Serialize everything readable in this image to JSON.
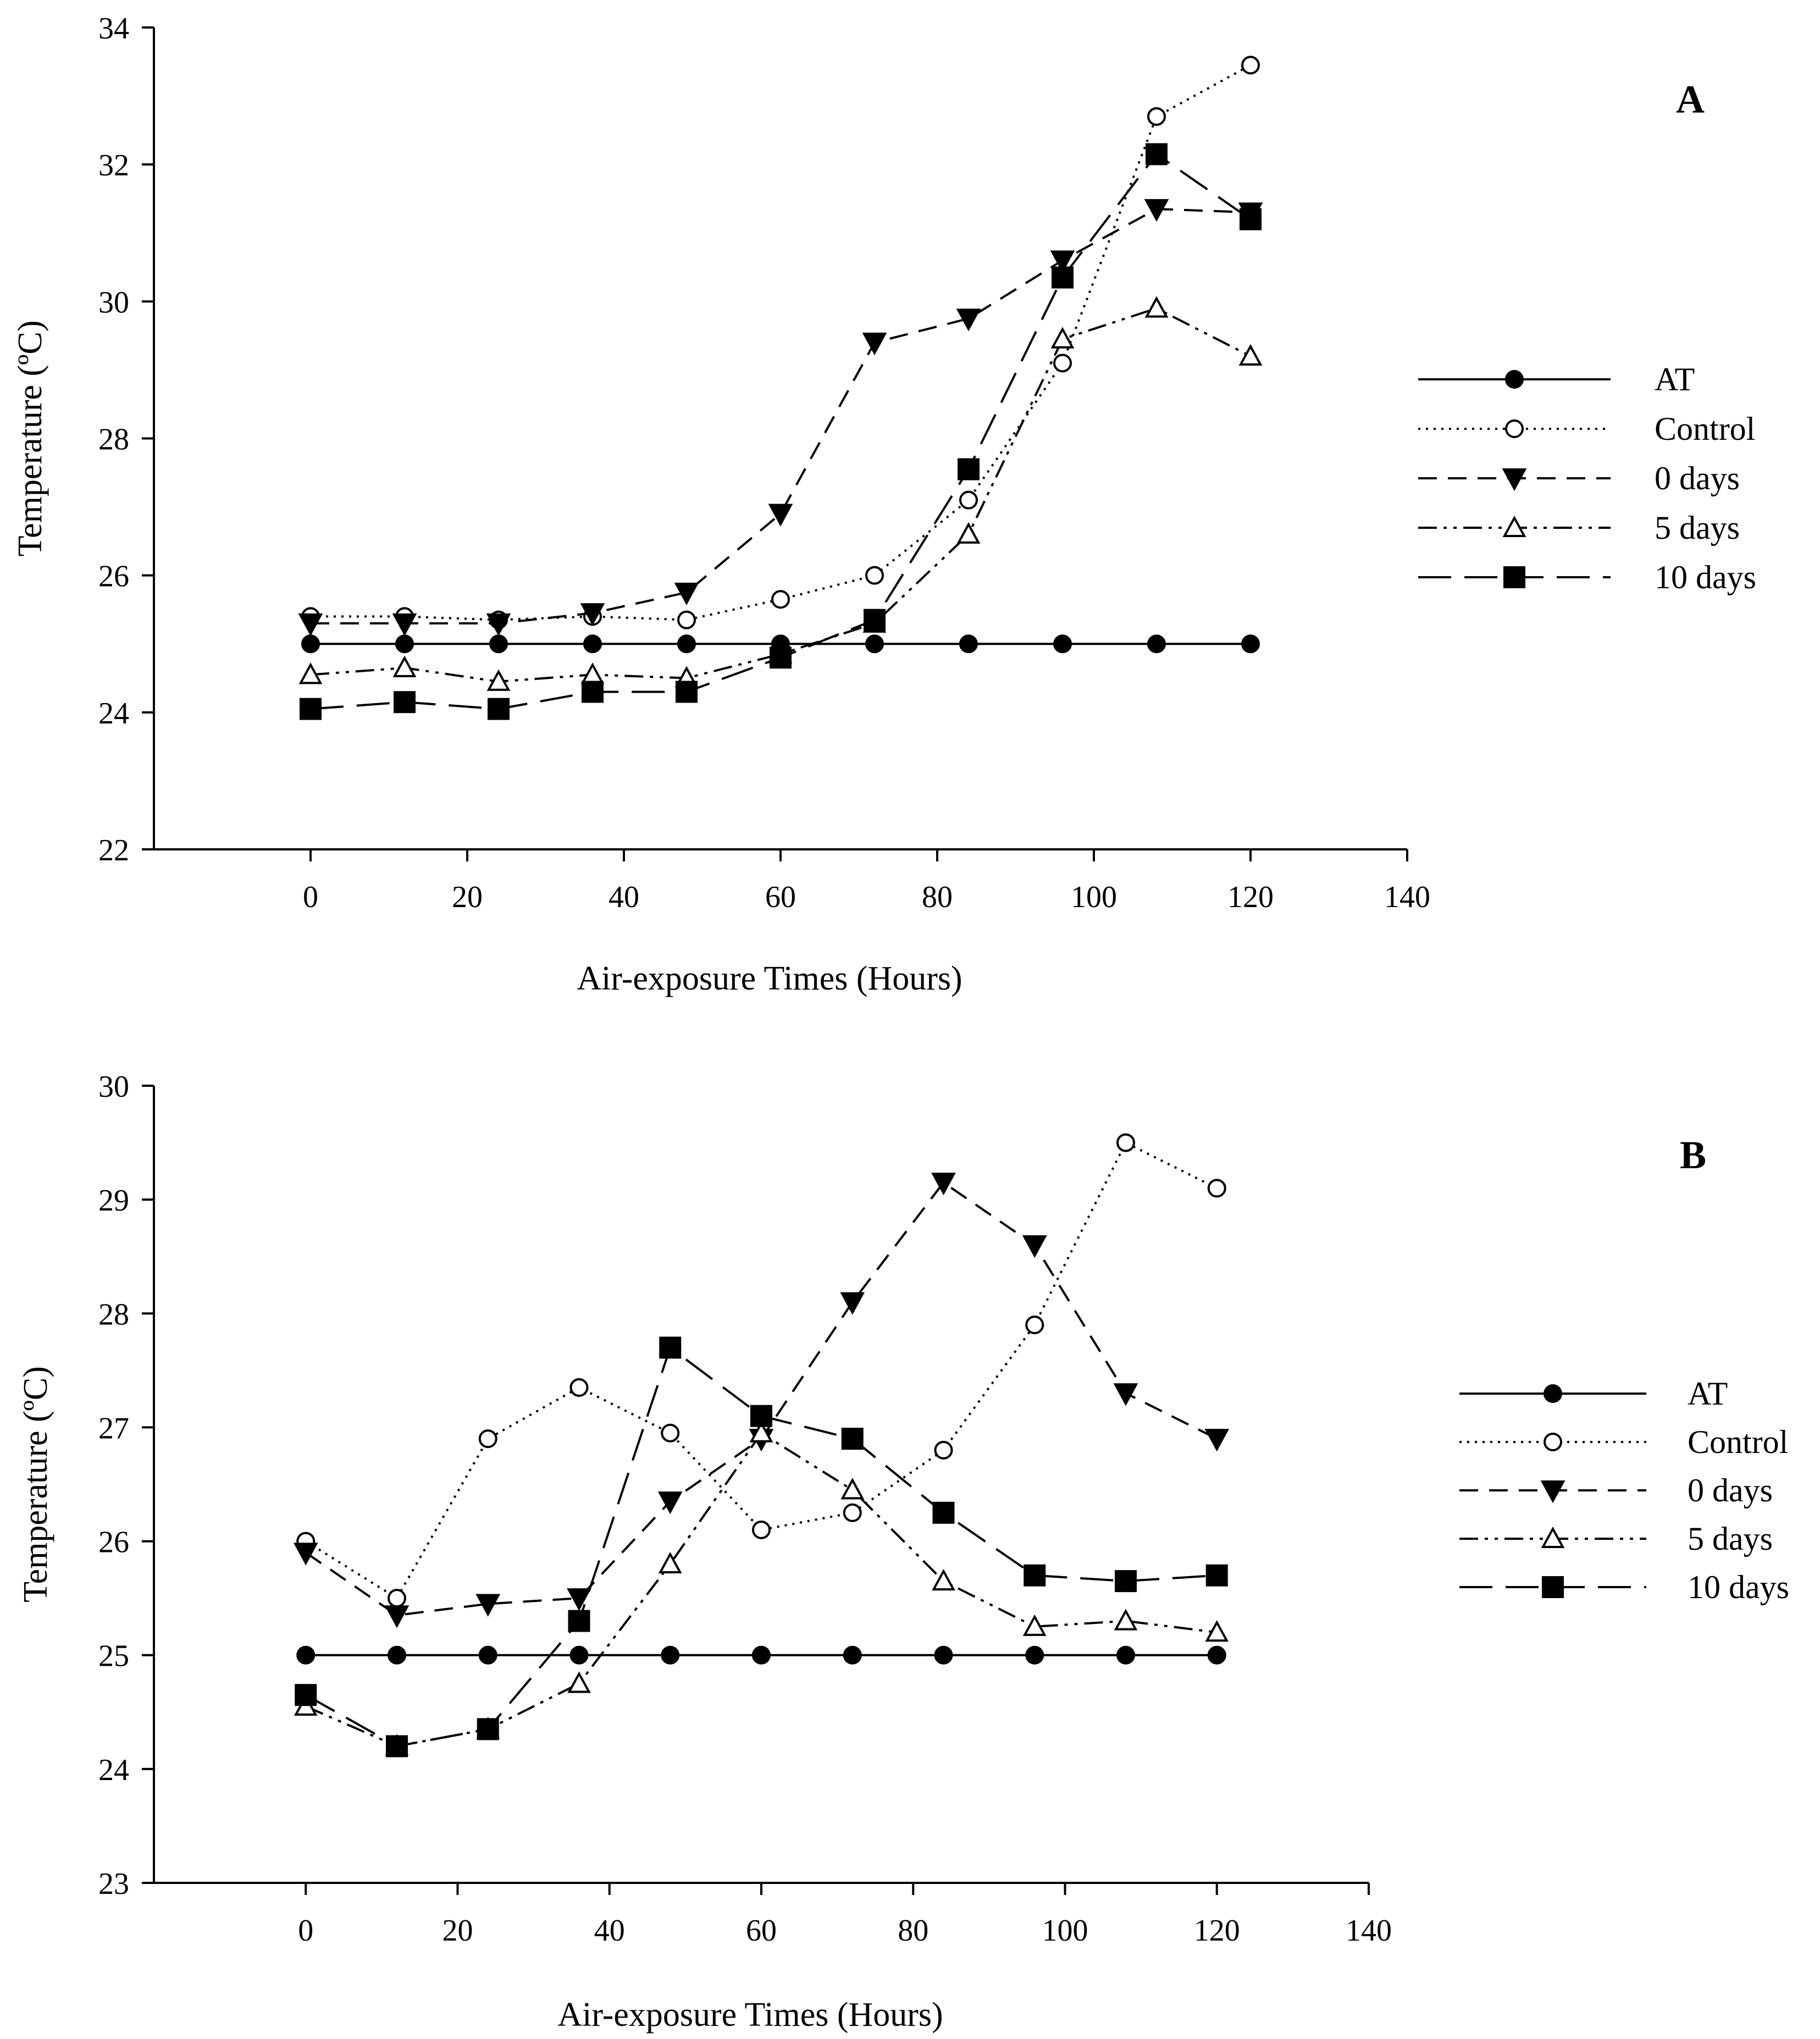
{
  "chart_data": [
    {
      "type": "line",
      "panel_label": "A",
      "xlabel": "Air-exposure Times (Hours)",
      "ylabel": "Temperature (ºC)",
      "xlim": [
        -20,
        140
      ],
      "ylim": [
        22,
        34
      ],
      "xticks": [
        0,
        20,
        40,
        60,
        80,
        100,
        120,
        140
      ],
      "yticks": [
        22,
        24,
        26,
        28,
        30,
        32,
        34
      ],
      "legend_position": "right",
      "x": [
        0,
        12,
        24,
        36,
        48,
        60,
        72,
        84,
        96,
        108,
        120
      ],
      "series": [
        {
          "name": "AT",
          "marker": "filled-circle",
          "line": "solid",
          "values": [
            25.0,
            25.0,
            25.0,
            25.0,
            25.0,
            25.0,
            25.0,
            25.0,
            25.0,
            25.0,
            25.0
          ]
        },
        {
          "name": "Control",
          "marker": "open-circle",
          "line": "dotted",
          "values": [
            25.4,
            25.4,
            25.35,
            25.4,
            25.35,
            25.65,
            26.0,
            27.1,
            29.1,
            32.7,
            33.45
          ]
        },
        {
          "name": "0 days",
          "marker": "filled-triangle-down",
          "line": "dashed",
          "values": [
            25.3,
            25.3,
            25.3,
            25.45,
            25.75,
            26.9,
            29.4,
            29.75,
            30.6,
            31.35,
            31.3
          ]
        },
        {
          "name": "5 days",
          "marker": "open-triangle-up",
          "line": "dash-dot-dot",
          "values": [
            24.55,
            24.65,
            24.45,
            24.55,
            24.5,
            24.85,
            25.3,
            26.6,
            29.45,
            29.9,
            29.2
          ]
        },
        {
          "name": "10 days",
          "marker": "filled-square",
          "line": "long-dash",
          "values": [
            24.05,
            24.15,
            24.05,
            24.3,
            24.3,
            24.8,
            25.35,
            27.55,
            30.35,
            32.15,
            31.2
          ]
        }
      ]
    },
    {
      "type": "line",
      "panel_label": "B",
      "xlabel": "Air-exposure Times (Hours)",
      "ylabel": "Temperature (ºC)",
      "xlim": [
        -20,
        140
      ],
      "ylim": [
        23,
        30
      ],
      "xticks": [
        0,
        20,
        40,
        60,
        80,
        100,
        120,
        140
      ],
      "yticks": [
        23,
        24,
        25,
        26,
        27,
        28,
        29,
        30
      ],
      "legend_position": "right",
      "x": [
        0,
        12,
        24,
        36,
        48,
        60,
        72,
        84,
        96,
        108,
        120
      ],
      "series": [
        {
          "name": "AT",
          "marker": "filled-circle",
          "line": "solid",
          "values": [
            25.0,
            25.0,
            25.0,
            25.0,
            25.0,
            25.0,
            25.0,
            25.0,
            25.0,
            25.0,
            25.0
          ]
        },
        {
          "name": "Control",
          "marker": "open-circle",
          "line": "dotted",
          "values": [
            26.0,
            25.5,
            26.9,
            27.35,
            26.95,
            26.1,
            26.25,
            26.8,
            27.9,
            29.5,
            29.1
          ]
        },
        {
          "name": "0 days",
          "marker": "filled-triangle-down",
          "line": "dashed",
          "values": [
            25.9,
            25.35,
            25.45,
            25.5,
            26.35,
            26.9,
            28.1,
            29.15,
            28.6,
            27.3,
            26.9
          ]
        },
        {
          "name": "5 days",
          "marker": "open-triangle-up",
          "line": "dash-dot-dot",
          "values": [
            24.55,
            24.2,
            24.35,
            24.75,
            25.8,
            26.95,
            26.45,
            25.65,
            25.25,
            25.3,
            25.2
          ]
        },
        {
          "name": "10 days",
          "marker": "filled-square",
          "line": "long-dash",
          "values": [
            24.65,
            24.2,
            24.35,
            25.3,
            27.7,
            27.1,
            26.9,
            26.25,
            25.7,
            25.65,
            25.7
          ]
        }
      ]
    }
  ]
}
